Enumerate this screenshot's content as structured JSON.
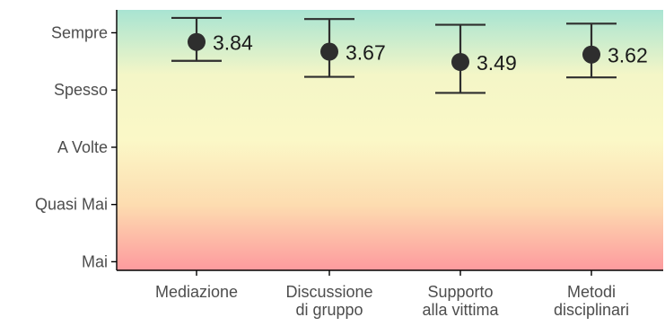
{
  "chart_data": {
    "type": "scatter",
    "title": "",
    "xlabel": "",
    "ylabel": "",
    "categories": [
      [
        "Mediazione"
      ],
      [
        "Discussione",
        "di gruppo"
      ],
      [
        "Supporto",
        "alla vittima"
      ],
      [
        "Metodi",
        "disciplinari"
      ]
    ],
    "y_tick_values": [
      0,
      1,
      2,
      3,
      4
    ],
    "y_tick_labels": [
      "Mai",
      "Quasi Mai",
      "A Volte",
      "Spesso",
      "Sempre"
    ],
    "ylim": [
      -0.15,
      4.4
    ],
    "series": [
      {
        "values": [
          3.84,
          3.67,
          3.49,
          3.62
        ],
        "lower": [
          3.51,
          3.23,
          2.95,
          3.22
        ],
        "upper": [
          4.26,
          4.24,
          4.14,
          4.16
        ],
        "labels": [
          "3.84",
          "3.67",
          "3.49",
          "3.62"
        ]
      }
    ],
    "background_gradient": [
      "#a8e4d2",
      "#f4f6c7",
      "#fbf8c7",
      "#fddcb0",
      "#fd9a9e"
    ],
    "point_color": "#2e2e2e",
    "grid": false,
    "legend": "none"
  }
}
